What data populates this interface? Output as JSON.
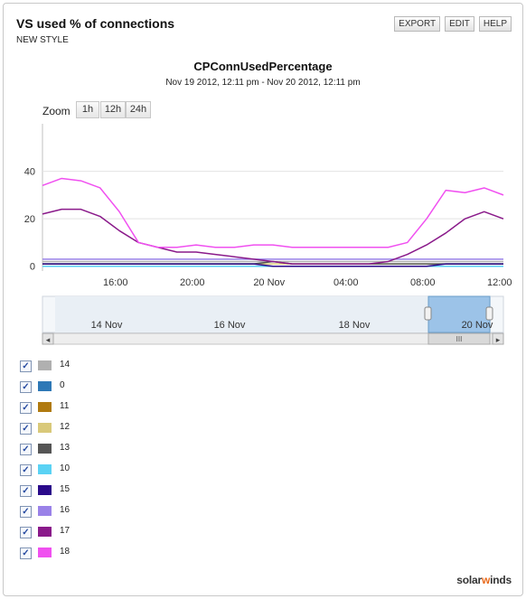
{
  "header": {
    "title": "VS used % of connections",
    "subtitle": "NEW STYLE",
    "buttons": [
      "EXPORT",
      "EDIT",
      "HELP"
    ]
  },
  "zoom": {
    "label": "Zoom",
    "options": [
      "1h",
      "12h",
      "24h"
    ]
  },
  "chart_data": {
    "type": "line",
    "title": "CPConnUsedPercentage",
    "subtitle": "Nov 19 2012, 12:11 pm - Nov 20 2012, 12:11 pm",
    "xlabel": "",
    "ylabel": "",
    "x_tick_labels": [
      "16:00",
      "20:00",
      "20 Nov",
      "04:00",
      "08:00",
      "12:00"
    ],
    "y_ticks": [
      0,
      20,
      40
    ],
    "ylim": [
      -2,
      60
    ],
    "x_hours": [
      0,
      1,
      2,
      3,
      4,
      5,
      6,
      7,
      8,
      9,
      10,
      11,
      12,
      13,
      14,
      15,
      16,
      17,
      18,
      19,
      20,
      21,
      22,
      23,
      24
    ],
    "grid": "horizontal",
    "series": [
      {
        "name": "14",
        "color": "#b0b0b0",
        "values": [
          2,
          2,
          2,
          2,
          2,
          2,
          2,
          2,
          2,
          2,
          2,
          2,
          2,
          2,
          2,
          2,
          2,
          2,
          2,
          2,
          2,
          2,
          2,
          2,
          2
        ]
      },
      {
        "name": "0",
        "color": "#2e78b6",
        "values": [
          0,
          0,
          0,
          0,
          0,
          0,
          0,
          0,
          0,
          0,
          0,
          0,
          0,
          0,
          0,
          0,
          0,
          0,
          0,
          0,
          0,
          0,
          0,
          0,
          0
        ]
      },
      {
        "name": "11",
        "color": "#b07a10",
        "values": [
          0,
          0,
          0,
          0,
          0,
          0,
          0,
          0,
          0,
          0,
          0,
          0,
          0,
          0,
          0,
          0,
          0,
          0,
          0,
          0,
          0,
          0,
          0,
          0,
          0
        ]
      },
      {
        "name": "12",
        "color": "#d9c97a",
        "values": [
          1,
          1,
          1,
          1,
          1,
          1,
          1,
          1,
          1,
          1,
          1,
          1,
          1,
          1,
          1,
          1,
          1,
          1,
          1,
          1,
          1,
          1,
          1,
          1,
          1
        ]
      },
      {
        "name": "13",
        "color": "#555555",
        "values": [
          1,
          1,
          1,
          1,
          1,
          1,
          1,
          1,
          1,
          1,
          1,
          1,
          2,
          1,
          1,
          1,
          1,
          1,
          1,
          1,
          1,
          1,
          1,
          1,
          1
        ]
      },
      {
        "name": "10",
        "color": "#5ad2f4",
        "values": [
          0,
          0,
          0,
          0,
          0,
          0,
          0,
          0,
          0,
          0,
          0,
          0,
          0,
          0,
          0,
          0,
          0,
          0,
          0,
          0,
          0,
          0,
          0,
          0,
          0
        ]
      },
      {
        "name": "15",
        "color": "#2a0a8a",
        "values": [
          1,
          1,
          1,
          1,
          1,
          1,
          1,
          1,
          1,
          1,
          1,
          1,
          0,
          0,
          0,
          0,
          0,
          0,
          0,
          0,
          0,
          1,
          1,
          1,
          1
        ]
      },
      {
        "name": "16",
        "color": "#9a82e8",
        "values": [
          3,
          3,
          3,
          3,
          3,
          3,
          3,
          3,
          3,
          3,
          3,
          3,
          3,
          3,
          3,
          3,
          3,
          3,
          3,
          3,
          3,
          3,
          3,
          3,
          3
        ]
      },
      {
        "name": "17",
        "color": "#8a1a8a",
        "values": [
          22,
          24,
          24,
          21,
          15,
          10,
          8,
          6,
          6,
          5,
          4,
          3,
          2,
          1,
          1,
          1,
          1,
          1,
          2,
          5,
          9,
          14,
          20,
          23,
          20
        ]
      },
      {
        "name": "18",
        "color": "#f050f0",
        "values": [
          34,
          37,
          36,
          33,
          23,
          10,
          8,
          8,
          9,
          8,
          8,
          9,
          9,
          8,
          8,
          8,
          8,
          8,
          8,
          10,
          20,
          32,
          31,
          33,
          30
        ]
      }
    ]
  },
  "navigator": {
    "labels": [
      "14 Nov",
      "16 Nov",
      "18 Nov",
      "20 Nov"
    ],
    "scroll_grip": "III",
    "left_arrow": "◂",
    "right_arrow": "▸"
  },
  "brand": {
    "pre": "solar",
    "o": "w",
    "post": "inds"
  }
}
